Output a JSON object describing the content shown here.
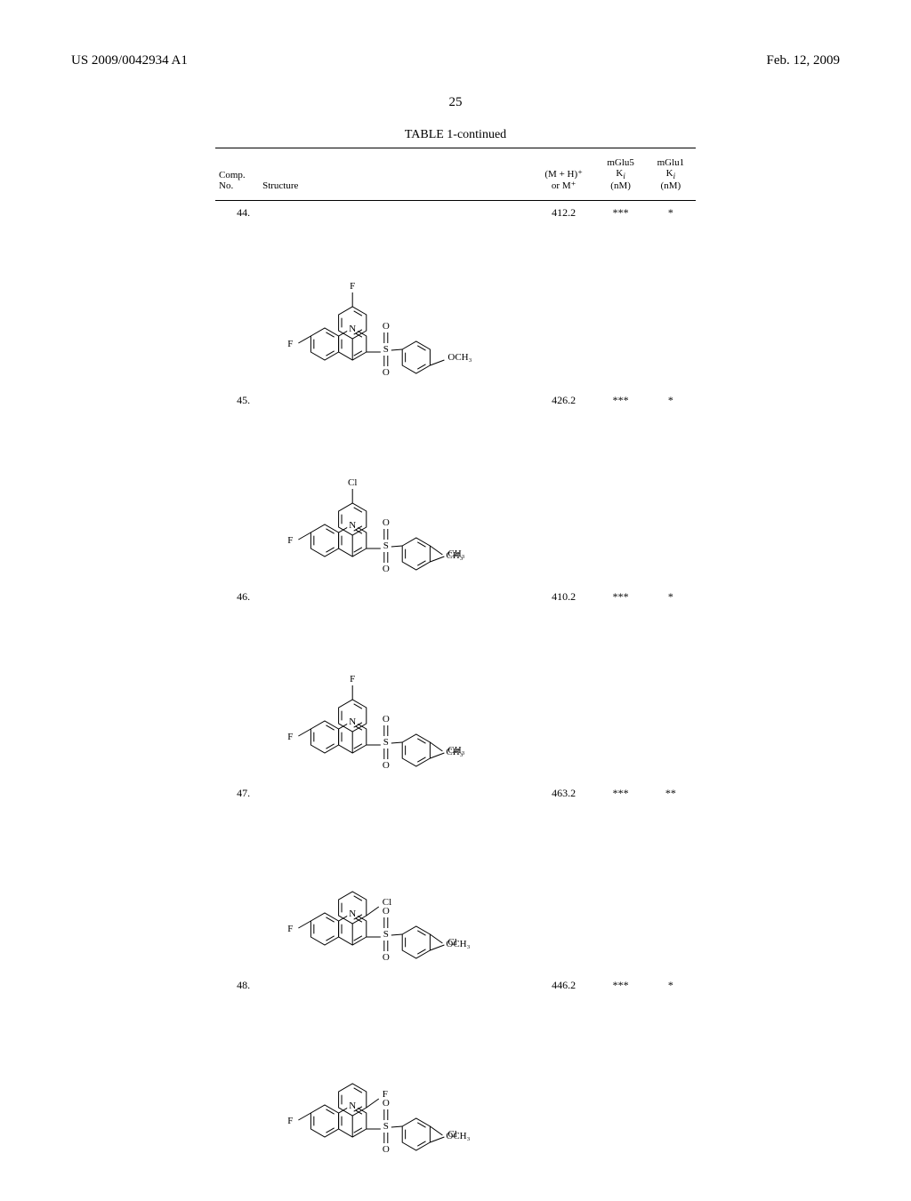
{
  "header": {
    "left": "US 2009/0042934 A1",
    "right": "Feb. 12, 2009"
  },
  "page_number": "25",
  "table": {
    "title": "TABLE 1-continued",
    "columns": {
      "comp_no_l1": "Comp.",
      "comp_no_l2": "No.",
      "structure": "Structure",
      "mh_l1": "(M + H)⁺",
      "mh_l2": "or M⁺",
      "mglu5_l1": "mGlu5",
      "mglu5_l2": "K",
      "mglu5_l3": "(nM)",
      "mglu1_l1": "mGlu1",
      "mglu1_l2": "K",
      "mglu1_l3": "(nM)",
      "ki_sub": "i"
    },
    "rows": [
      {
        "no": "44.",
        "mh": "412.2",
        "mglu5": "***",
        "mglu1": "*",
        "struct_h": 205,
        "top_halo": "F",
        "top_meta": false,
        "left_f": "F",
        "right_sub1": "OCH₃",
        "right_sub2": "",
        "right_sub2_pos": "para"
      },
      {
        "no": "45.",
        "mh": "426.2",
        "mglu5": "***",
        "mglu1": "*",
        "struct_h": 215,
        "top_halo": "Cl",
        "top_meta": false,
        "left_f": "F",
        "right_sub1": "CH₃",
        "right_sub2": "CH₃",
        "right_sub2_pos": "para"
      },
      {
        "no": "46.",
        "mh": "410.2",
        "mglu5": "***",
        "mglu1": "*",
        "struct_h": 215,
        "top_halo": "F",
        "top_meta": false,
        "left_f": "F",
        "right_sub1": "CH₃",
        "right_sub2": "CH₃",
        "right_sub2_pos": "para"
      },
      {
        "no": "47.",
        "mh": "463.2",
        "mglu5": "***",
        "mglu1": "**",
        "struct_h": 210,
        "top_halo": "Cl",
        "top_meta": true,
        "left_f": "F",
        "right_sub1": "Cl",
        "right_sub2": "OCH₃",
        "right_sub2_pos": "para"
      },
      {
        "no": "48.",
        "mh": "446.2",
        "mglu5": "***",
        "mglu1": "*",
        "struct_h": 210,
        "top_halo": "F",
        "top_meta": true,
        "left_f": "F",
        "right_sub1": "Cl",
        "right_sub2": "OCH₃",
        "right_sub2_pos": "para"
      }
    ]
  },
  "style": {
    "background": "#ffffff",
    "text_color": "#000000",
    "rule_color": "#000000",
    "font_family": "Times New Roman",
    "header_fontsize": 15,
    "pagenum_fontsize": 15,
    "table_title_fontsize": 14,
    "table_head_fontsize": 11,
    "table_body_fontsize": 12,
    "atom_fontsize": 11
  }
}
